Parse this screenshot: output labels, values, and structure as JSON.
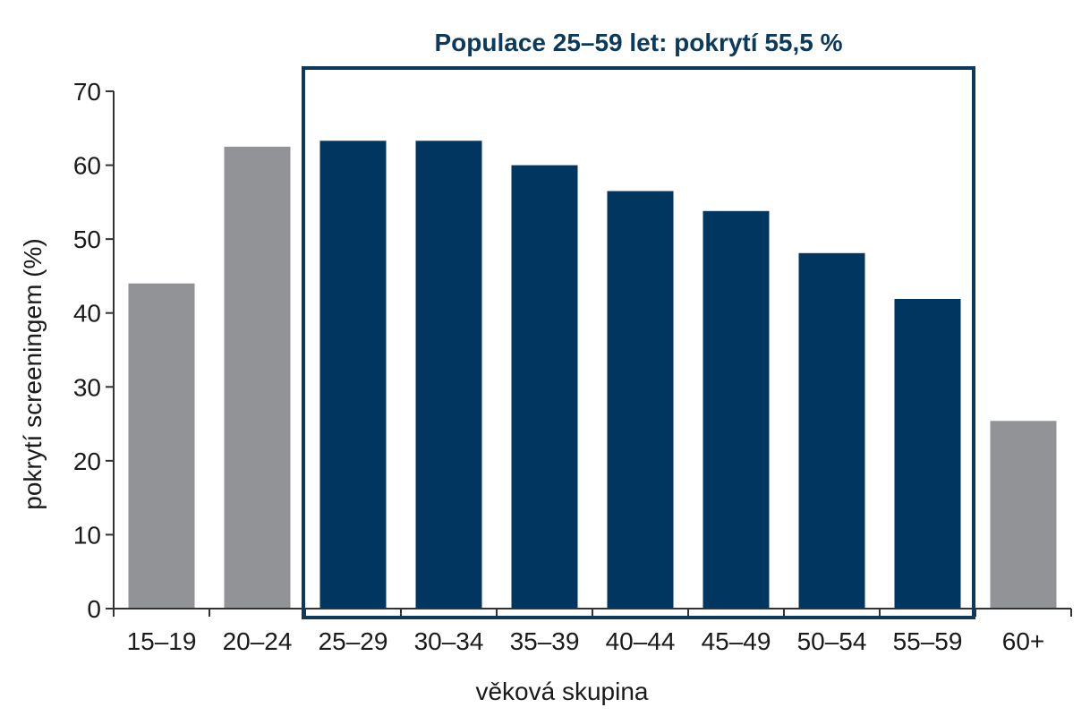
{
  "chart_data": {
    "type": "bar",
    "title": "",
    "xlabel": "věková skupina",
    "ylabel": "pokrytí screeningem (%)",
    "ylim": [
      0,
      70
    ],
    "yticks": [
      0,
      10,
      20,
      30,
      40,
      50,
      60,
      70
    ],
    "categories": [
      "15–19",
      "20–24",
      "25–29",
      "30–34",
      "35–39",
      "40–44",
      "45–49",
      "50–54",
      "55–59",
      "60+"
    ],
    "values": [
      44,
      62.5,
      63.3,
      63.3,
      60,
      56.5,
      53.8,
      48.1,
      41.9,
      25.4
    ],
    "highlight": {
      "label": "Populace 25–59 let: pokrytí 55,5 %",
      "from_category": "25–29",
      "to_category": "55–59"
    },
    "grid": false,
    "legend": "none",
    "colors": {
      "default_bar": "#929397",
      "highlight_bar": "#00365f",
      "highlight_frame": "#0d3a5c",
      "axis": "#333333"
    }
  }
}
